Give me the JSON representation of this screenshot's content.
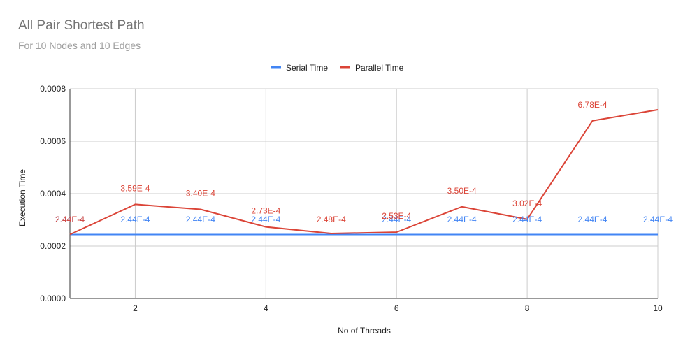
{
  "chart_data": {
    "type": "line",
    "title": "All Pair Shortest Path",
    "subtitle": "For 10 Nodes and 10 Edges",
    "xlabel": "No of Threads",
    "ylabel": "Execution Time",
    "x": [
      1,
      2,
      3,
      4,
      5,
      6,
      7,
      8,
      9,
      10
    ],
    "xlim": [
      1,
      10
    ],
    "ylim": [
      0,
      0.0008
    ],
    "x_ticks": [
      "2",
      "4",
      "6",
      "8",
      "10"
    ],
    "y_ticks": [
      "0.0000",
      "0.0002",
      "0.0004",
      "0.0006",
      "0.0008"
    ],
    "grid": true,
    "legend_position": "top-center",
    "series": [
      {
        "name": "Serial Time",
        "color": "#4285f4",
        "values": [
          0.000244,
          0.000244,
          0.000244,
          0.000244,
          0.000244,
          0.000244,
          0.000244,
          0.000244,
          0.000244,
          0.000244
        ],
        "labels": [
          "2.44E-4",
          "2.44E-4",
          "2.44E-4",
          "2.44E-4",
          "",
          "2.44E-4",
          "2.44E-4",
          "2.44E-4",
          "2.44E-4",
          "2.44E-4"
        ]
      },
      {
        "name": "Parallel Time",
        "color": "#db4437",
        "values": [
          0.000244,
          0.000359,
          0.00034,
          0.000273,
          0.000248,
          0.000253,
          0.00035,
          0.000302,
          0.000678,
          0.00072
        ],
        "labels": [
          "2.44E-4",
          "3.59E-4",
          "3.40E-4",
          "2.73E-4",
          "2.48E-4",
          "2.53E-4",
          "3.50E-4",
          "3.02E-4",
          "6.78E-4",
          ""
        ]
      }
    ]
  }
}
